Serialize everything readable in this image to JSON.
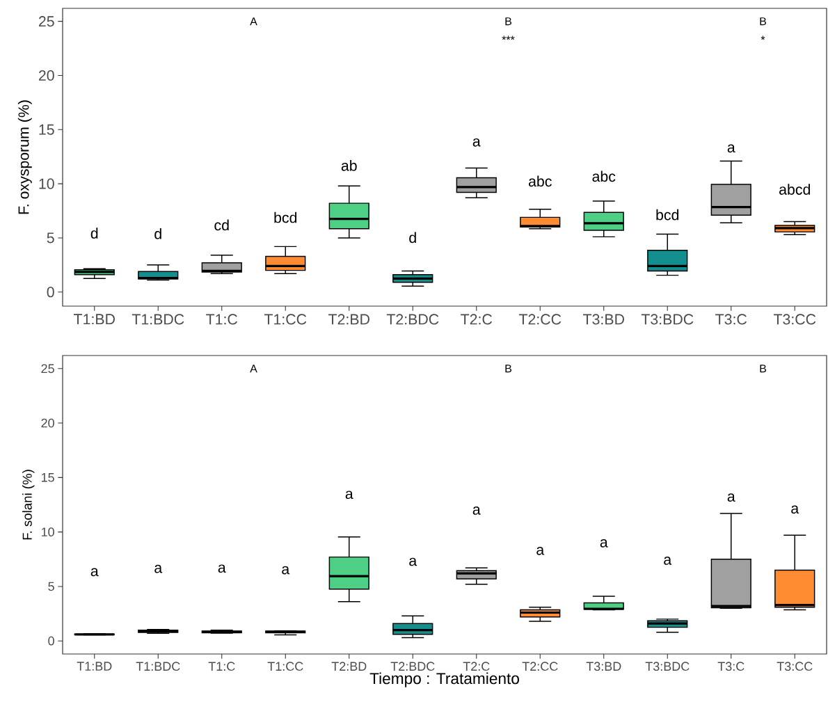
{
  "chart_data": [
    {
      "type": "box",
      "ylabel": "F. oxysporum (%)",
      "categories": [
        "T1:BD",
        "T1:BDC",
        "T1:C",
        "T1:CC",
        "T2:BD",
        "T2:BDC",
        "T2:C",
        "T2:CC",
        "T3:BD",
        "T3:BDC",
        "T3:C",
        "T3:CC"
      ],
      "colors": [
        "#4fcf85",
        "#138f8f",
        "#a0a0a0",
        "#ff8c33",
        "#4fcf85",
        "#138f8f",
        "#a0a0a0",
        "#ff8c33",
        "#4fcf85",
        "#138f8f",
        "#a0a0a0",
        "#ff8c33"
      ],
      "boxes": [
        {
          "low": 1.25,
          "q1": 1.6,
          "median": 1.85,
          "q3": 2.05,
          "high": 2.15
        },
        {
          "low": 1.1,
          "q1": 1.2,
          "median": 1.3,
          "q3": 1.9,
          "high": 2.5
        },
        {
          "low": 1.7,
          "q1": 1.85,
          "median": 1.95,
          "q3": 2.7,
          "high": 3.4
        },
        {
          "low": 1.7,
          "q1": 2.0,
          "median": 2.4,
          "q3": 3.3,
          "high": 4.2
        },
        {
          "low": 5.0,
          "q1": 5.85,
          "median": 6.75,
          "q3": 8.2,
          "high": 9.8
        },
        {
          "low": 0.55,
          "q1": 0.9,
          "median": 1.25,
          "q3": 1.6,
          "high": 1.95
        },
        {
          "low": 8.7,
          "q1": 9.2,
          "median": 9.7,
          "q3": 10.55,
          "high": 11.45
        },
        {
          "low": 5.85,
          "q1": 6.0,
          "median": 6.1,
          "q3": 6.9,
          "high": 7.65
        },
        {
          "low": 5.1,
          "q1": 5.7,
          "median": 6.35,
          "q3": 7.35,
          "high": 8.4
        },
        {
          "low": 1.55,
          "q1": 1.95,
          "median": 2.4,
          "q3": 3.85,
          "high": 5.35
        },
        {
          "low": 6.4,
          "q1": 7.1,
          "median": 7.85,
          "q3": 9.95,
          "high": 12.1
        },
        {
          "low": 5.3,
          "q1": 5.55,
          "median": 5.9,
          "q3": 6.15,
          "high": 6.5
        }
      ],
      "ylim": [
        -1.3,
        26.2
      ],
      "yticks": [
        0,
        5,
        10,
        15,
        20,
        25
      ],
      "annotations": [
        "A",
        "B",
        "***",
        "B",
        "*",
        "d",
        "d",
        "cd",
        "bcd",
        "ab",
        "d",
        "a",
        "abc",
        "abc",
        "bcd",
        "a",
        "abcd"
      ]
    },
    {
      "type": "box",
      "ylabel": "F. solani (%)",
      "xlabel": "Tiempo : Tratamiento",
      "categories": [
        "T1:BD",
        "T1:BDC",
        "T1:C",
        "T1:CC",
        "T2:BD",
        "T2:BDC",
        "T2:C",
        "T2:CC",
        "T3:BD",
        "T3:BDC",
        "T3:C",
        "T3:CC"
      ],
      "colors": [
        "#4fcf85",
        "#138f8f",
        "#a0a0a0",
        "#ff8c33",
        "#4fcf85",
        "#138f8f",
        "#a0a0a0",
        "#ff8c33",
        "#4fcf85",
        "#138f8f",
        "#a0a0a0",
        "#ff8c33"
      ],
      "boxes": [
        {
          "low": 0.55,
          "q1": 0.57,
          "median": 0.6,
          "q3": 0.62,
          "high": 0.65
        },
        {
          "low": 0.7,
          "q1": 0.78,
          "median": 0.88,
          "q3": 0.98,
          "high": 1.05
        },
        {
          "low": 0.72,
          "q1": 0.75,
          "median": 0.82,
          "q3": 0.9,
          "high": 0.98
        },
        {
          "low": 0.55,
          "q1": 0.75,
          "median": 0.82,
          "q3": 0.9,
          "high": 0.93
        },
        {
          "low": 3.6,
          "q1": 4.75,
          "median": 5.95,
          "q3": 7.7,
          "high": 9.55
        },
        {
          "low": 0.3,
          "q1": 0.6,
          "median": 1.0,
          "q3": 1.6,
          "high": 2.3
        },
        {
          "low": 5.2,
          "q1": 5.7,
          "median": 6.2,
          "q3": 6.45,
          "high": 6.7
        },
        {
          "low": 1.8,
          "q1": 2.2,
          "median": 2.6,
          "q3": 2.85,
          "high": 3.1
        },
        {
          "low": 2.85,
          "q1": 2.9,
          "median": 2.95,
          "q3": 3.5,
          "high": 4.1
        },
        {
          "low": 0.8,
          "q1": 1.25,
          "median": 1.6,
          "q3": 1.85,
          "high": 2.0
        },
        {
          "low": 3.0,
          "q1": 3.05,
          "median": 3.2,
          "q3": 7.5,
          "high": 11.7
        },
        {
          "low": 2.85,
          "q1": 3.1,
          "median": 3.3,
          "q3": 6.5,
          "high": 9.7
        }
      ],
      "ylim": [
        -1.2,
        26.2
      ],
      "yticks": [
        0,
        5,
        10,
        15,
        20,
        25
      ],
      "annotations": [
        "A",
        "B",
        "B",
        "a",
        "a",
        "a",
        "a",
        "a",
        "a",
        "a",
        "a",
        "a",
        "a",
        "a",
        "a"
      ]
    }
  ]
}
